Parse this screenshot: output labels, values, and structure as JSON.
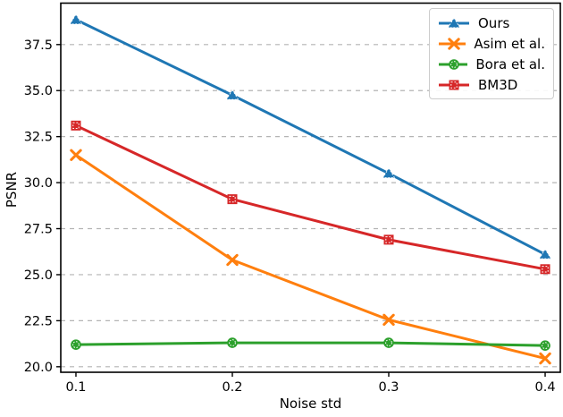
{
  "figure": {
    "background": "#ffffff"
  },
  "chart_data": {
    "type": "line",
    "title": "",
    "xlabel": "Noise std",
    "ylabel": "PSNR",
    "x": [
      0.1,
      0.2,
      0.3,
      0.4
    ],
    "xticks": [
      "0.1",
      "0.2",
      "0.3",
      "0.4"
    ],
    "xtick_values": [
      0.1,
      0.2,
      0.3,
      0.4
    ],
    "yticks": [
      "20.0",
      "22.5",
      "25.0",
      "27.5",
      "30.0",
      "32.5",
      "35.0",
      "37.5"
    ],
    "ytick_values": [
      20.0,
      22.5,
      25.0,
      27.5,
      30.0,
      32.5,
      35.0,
      37.5
    ],
    "xlim": [
      0.0903,
      0.4097
    ],
    "ylim": [
      19.7,
      39.75
    ],
    "grid": "horizontal-dashed",
    "grid_color": "#b4b4b4",
    "spine_color": "#000000",
    "legend_position": "upper-right",
    "series": [
      {
        "name": "Ours",
        "color": "#1f77b4",
        "marker": "triangle",
        "values": [
          38.85,
          34.75,
          30.5,
          26.1
        ]
      },
      {
        "name": "Asim et al.",
        "color": "#ff7f0e",
        "marker": "x",
        "values": [
          31.5,
          25.8,
          22.55,
          20.45
        ]
      },
      {
        "name": "Bora et al.",
        "color": "#2ca02c",
        "marker": "circle",
        "values": [
          21.2,
          21.3,
          21.3,
          21.15
        ]
      },
      {
        "name": "BM3D",
        "color": "#d62728",
        "marker": "square",
        "values": [
          33.1,
          29.1,
          26.9,
          25.3
        ]
      }
    ]
  }
}
